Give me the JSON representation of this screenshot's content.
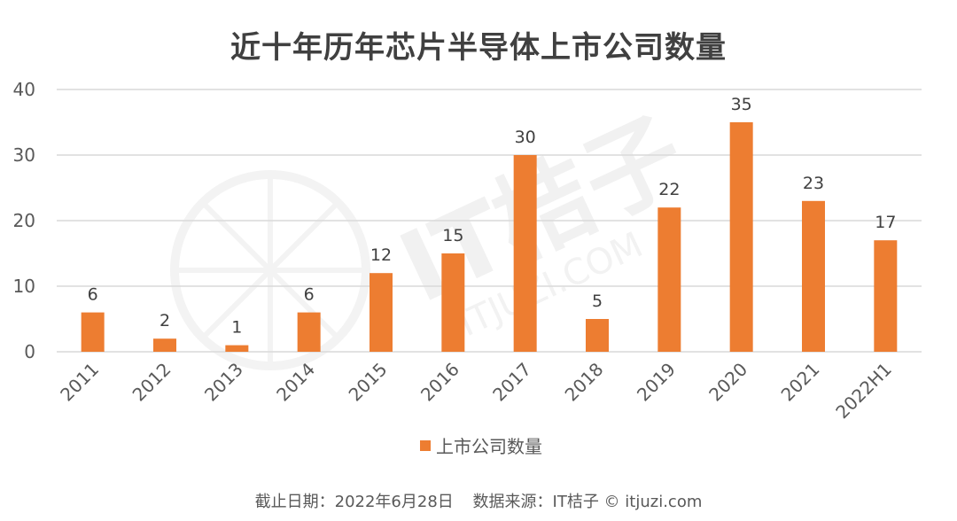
{
  "chart_data": {
    "type": "bar",
    "title": "近十年历年芯片半导体上市公司数量",
    "categories": [
      "2011",
      "2012",
      "2013",
      "2014",
      "2015",
      "2016",
      "2017",
      "2018",
      "2019",
      "2020",
      "2021",
      "2022H1"
    ],
    "series": [
      {
        "name": "上市公司数量",
        "values": [
          6,
          2,
          1,
          6,
          12,
          15,
          30,
          5,
          22,
          35,
          23,
          17
        ],
        "color": "#ED7D31"
      }
    ],
    "ylim": [
      0,
      40
    ],
    "yticks": [
      0,
      10,
      20,
      30,
      40
    ],
    "grid": true,
    "legend": "bottom-center",
    "data_labels": true
  },
  "watermark": {
    "brand": "IT桔子",
    "site": "ITJUZI.COM"
  },
  "footer": {
    "date_note": "截止日期：2022年6月28日",
    "source_note": "数据来源：IT桔子 © itjuzi.com"
  },
  "colors": {
    "bar": "#ED7D31",
    "grid": "#D9D9D9",
    "text": "#595959"
  }
}
